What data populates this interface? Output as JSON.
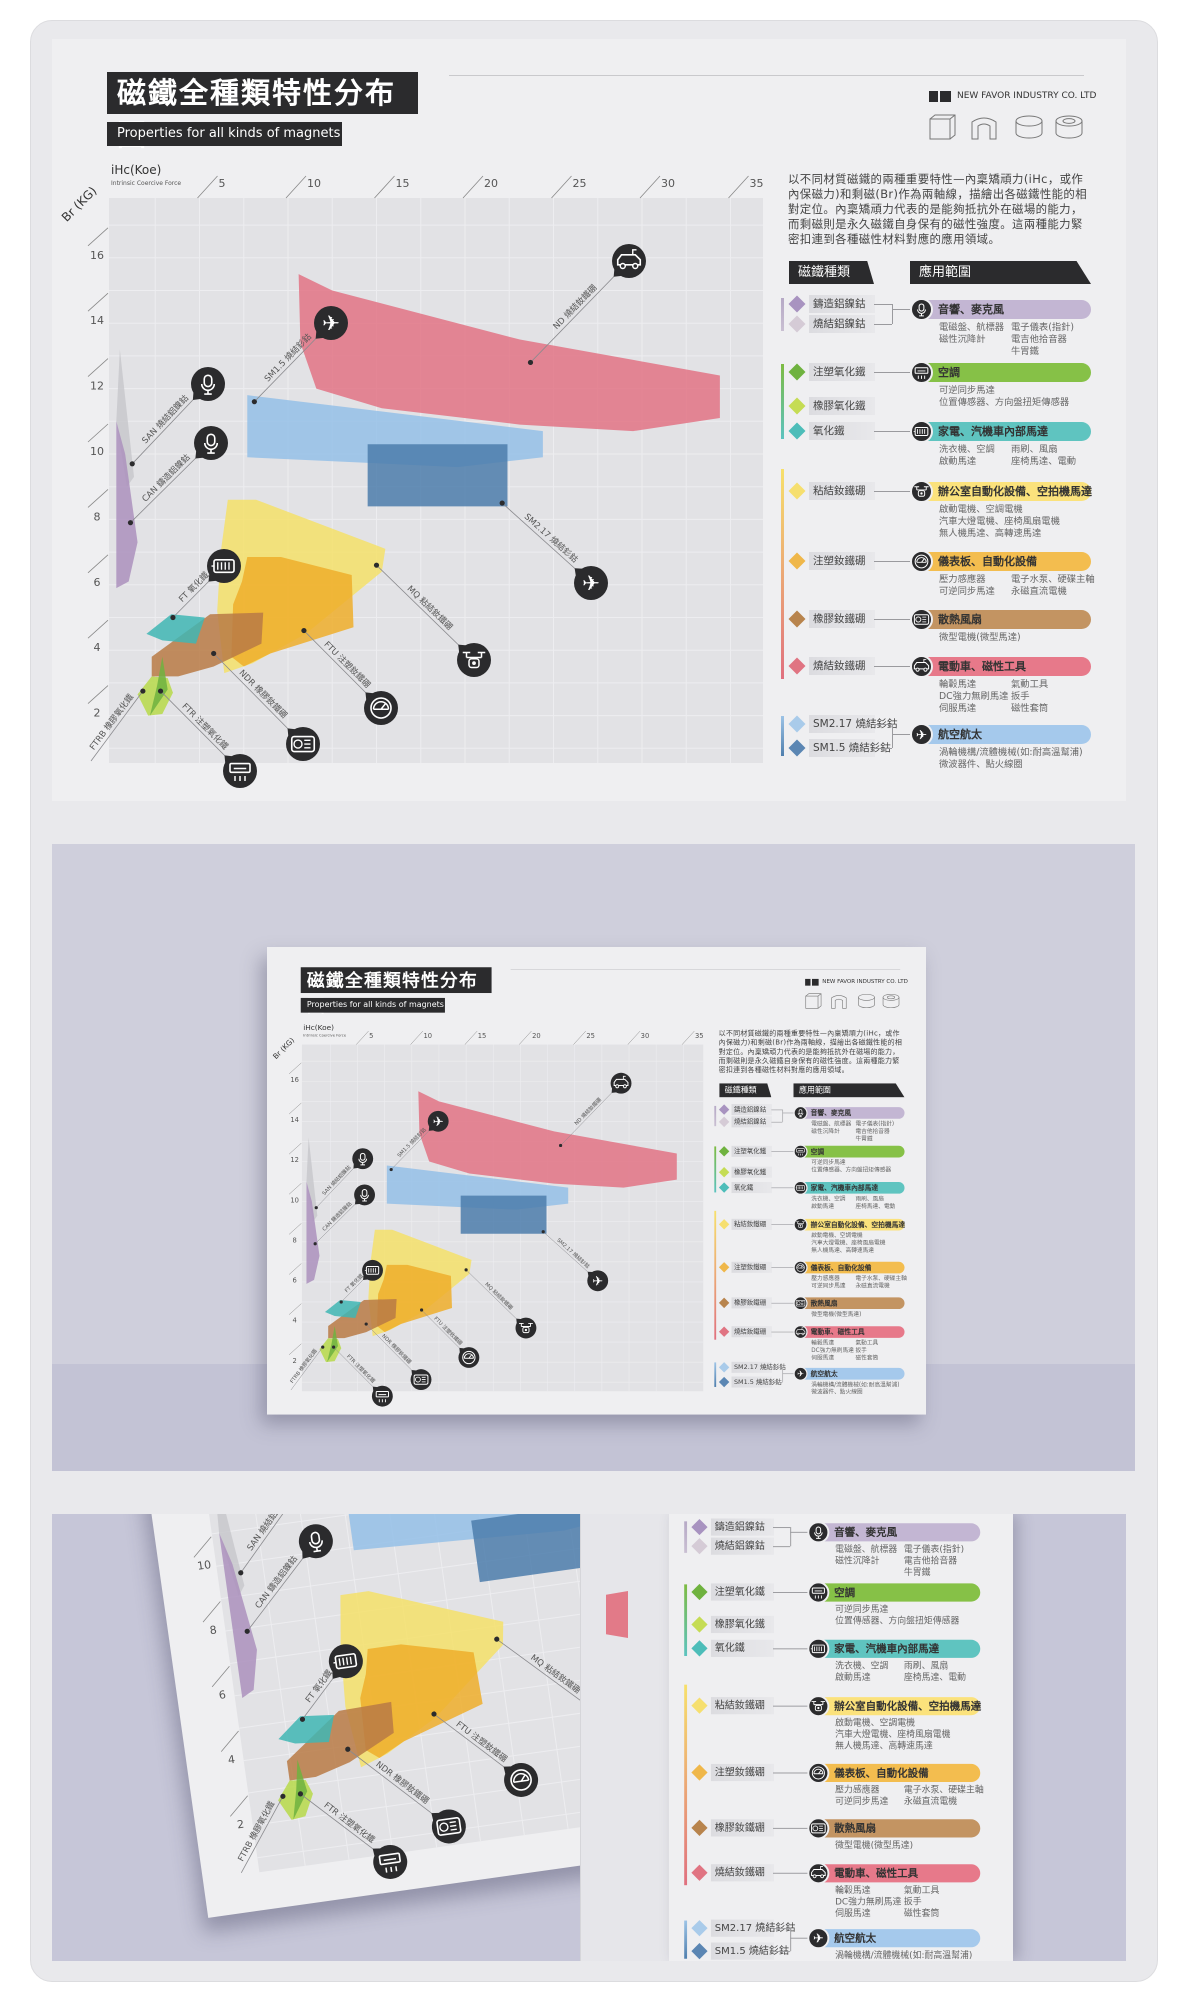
{
  "poster": {
    "title": "磁鐵全種類特性分布圖",
    "subtitle": "Properties for all kinds of magnets",
    "company": "NEW FAVOR INDUSTRY CO. LTD",
    "shape_icons": [
      "block-magnet-icon",
      "arc-magnet-icon",
      "disc-magnet-icon",
      "ring-magnet-icon"
    ],
    "description": "以不同材質磁鐵的兩種重要特性—內稟矯頑力(iHc，或作內保磁力)和剩磁(Br)作為兩軸線，描繪出各磁鐵性能的相對定位。內稟矯頑力代表的是能夠抵抗外在磁場的能力，而剩磁則是永久磁鐵自身保有的磁性強度。這兩種能力緊密扣連到各種磁性材料對應的應用領域。",
    "header_types": "磁鐵種類",
    "header_apps": "應用範圍",
    "materials": [
      {
        "name": "鑄造鋁鎳鈷",
        "color": "#a893c0"
      },
      {
        "name": "燒結鋁鎳鈷",
        "color": "#d5cbd6"
      },
      {
        "name": "注塑氧化鐵",
        "color": "#6fb23f"
      },
      {
        "name": "橡膠氧化鐵",
        "color": "#c5dc54"
      },
      {
        "name": "氧化鐵",
        "color": "#4dbdb9"
      },
      {
        "name": "粘結釹鐵硼",
        "color": "#f6df6f"
      },
      {
        "name": "注塑釹鐵硼",
        "color": "#efb74a"
      },
      {
        "name": "橡膠釹鐵硼",
        "color": "#b8844d"
      },
      {
        "name": "燒結釹鐵硼",
        "color": "#e07482"
      },
      {
        "name": "SM2.17 燒結釤鈷",
        "color": "#a9cbea"
      },
      {
        "name": "SM1.5 燒結釤鈷",
        "color": "#5b86b3"
      }
    ],
    "applications": [
      {
        "title": "音響、麥克風",
        "icon": "microphone-icon",
        "color": "#c3b6d3",
        "lines": [
          [
            "電磁盤、航標器",
            "電子儀表(指針)"
          ],
          [
            "磁性沉降計",
            "電吉他拾音器"
          ],
          [
            "",
            "牛胃鐵"
          ]
        ]
      },
      {
        "title": "空調",
        "icon": "air-conditioner-icon",
        "color": "#86c147",
        "lines": [
          [
            "可逆同步馬達",
            ""
          ],
          [
            "位置傳感器、方向盤扭矩傳感器",
            ""
          ]
        ]
      },
      {
        "title": "家電、汽機車內部馬達",
        "icon": "motor-icon",
        "color": "#5fc4c0",
        "lines": [
          [
            "洗衣機、空調",
            "雨刷、風扇"
          ],
          [
            "啟動馬達",
            "座椅馬達、電動"
          ]
        ]
      },
      {
        "title": "辦公室自動化設備、空拍機馬達",
        "icon": "drone-icon",
        "color": "#fbe27c",
        "lines": [
          [
            "啟動電機、空調電機",
            ""
          ],
          [
            "汽車大燈電機、座椅風扇電機",
            ""
          ],
          [
            "無人機馬達、高轉速馬達",
            ""
          ]
        ]
      },
      {
        "title": "儀表板、自動化設備",
        "icon": "gauge-icon",
        "color": "#f3bd4f",
        "lines": [
          [
            "壓力感應器",
            "電子水泵、硬碟主軸"
          ],
          [
            "可逆同步馬達",
            "永磁直流電機"
          ]
        ]
      },
      {
        "title": "散熱風扇",
        "icon": "fan-panel-icon",
        "color": "#c39462",
        "lines": [
          [
            "微型電機(微型馬達)",
            ""
          ]
        ]
      },
      {
        "title": "電動車、磁性工具",
        "icon": "car-icon",
        "color": "#e7798a",
        "lines": [
          [
            "輪轂馬達",
            "氣動工具"
          ],
          [
            "DC強力無刷馬達",
            "扳手"
          ],
          [
            "伺服馬達",
            "磁性套筒"
          ]
        ]
      },
      {
        "title": "航空航太",
        "icon": "airplane-icon",
        "color": "#a5c9ec",
        "lines": [
          [
            "渦輪機構/流體機械(如:耐高溫幫浦)",
            ""
          ],
          [
            "微波器件、點火線圈",
            ""
          ]
        ]
      }
    ],
    "group_colors": [
      [
        "#b6a9c6",
        "#c9bfd2"
      ],
      [
        "#7dbb42",
        "#5cc3c0"
      ],
      [
        "#f7e06b",
        "#e0707f"
      ],
      [
        "#9cc3e6",
        "#4f7fae"
      ]
    ]
  },
  "chart_data": {
    "type": "area",
    "xlabel": "iHc(Koe)",
    "xlabel_sub": "Intrinsic Coercive Force",
    "ylabel": "Br (KG)",
    "xlim": [
      0,
      37
    ],
    "ylim": [
      0,
      17.7
    ],
    "xticks": [
      5,
      10,
      15,
      20,
      25,
      30,
      35
    ],
    "yticks": [
      2,
      4,
      6,
      8,
      10,
      12,
      14,
      16
    ],
    "grid": true,
    "regions": [
      {
        "label": "SAN 燒結鋁鎳鈷",
        "color": "#c8c8cc",
        "icon": "microphone-icon",
        "point": [
          1.2,
          9.7
        ],
        "polygon": [
          [
            0.5,
            13.2
          ],
          [
            1.3,
            9.3
          ],
          [
            0.9,
            9.0
          ],
          [
            0.3,
            11.0
          ]
        ]
      },
      {
        "label": "CAN 鑄造鋁鎳鈷",
        "color": "#ab90bd",
        "icon": "microphone-icon",
        "point": [
          1.1,
          7.9
        ],
        "polygon": [
          [
            0.3,
            11.0
          ],
          [
            0.8,
            10.0
          ],
          [
            1.5,
            7.3
          ],
          [
            1.0,
            6.1
          ],
          [
            0.3,
            5.9
          ]
        ]
      },
      {
        "label": "SM1.5 燒結釤鈷",
        "color": "#94bfe8",
        "icon": "airplane-icon",
        "point": [
          8.1,
          11.6
        ],
        "polygon": [
          [
            7.7,
            11.8
          ],
          [
            24.4,
            10.7
          ],
          [
            24.4,
            9.9
          ],
          [
            19.6,
            9.6
          ],
          [
            7.7,
            9.9
          ]
        ]
      },
      {
        "label": "ND 燒結釹鐵硼",
        "color": "#e27385",
        "icon": "car-icon",
        "point": [
          23.7,
          12.8
        ],
        "polygon": [
          [
            10.6,
            15.5
          ],
          [
            12.5,
            15.0
          ],
          [
            23.1,
            13.5
          ],
          [
            34.4,
            12.4
          ],
          [
            34.4,
            11.1
          ],
          [
            29.5,
            10.7
          ],
          [
            23.1,
            10.9
          ],
          [
            15.3,
            11.4
          ],
          [
            11.6,
            12.0
          ],
          [
            10.7,
            13.4
          ]
        ]
      },
      {
        "label": "SM2.17 燒結釤鈷",
        "color": "#4c7cab",
        "icon": "airplane-icon",
        "point": [
          22.1,
          8.5
        ],
        "polygon": [
          [
            14.5,
            10.3
          ],
          [
            22.4,
            10.3
          ],
          [
            22.4,
            8.4
          ],
          [
            14.5,
            8.4
          ]
        ]
      },
      {
        "label": "MQ 粘結釹鐵硼",
        "color": "#f4e06a",
        "icon": "drone-icon",
        "point": [
          15.0,
          6.6
        ],
        "polygon": [
          [
            6.6,
            8.6
          ],
          [
            8.2,
            8.6
          ],
          [
            15.5,
            7.1
          ],
          [
            15.3,
            6.4
          ],
          [
            11.0,
            4.5
          ],
          [
            8.0,
            3.6
          ],
          [
            6.4,
            3.3
          ],
          [
            6.0,
            5.2
          ],
          [
            6.2,
            7.0
          ]
        ]
      },
      {
        "label": "FTU 注塑釹鐵硼",
        "color": "#efae2c",
        "icon": "gauge-icon",
        "point": [
          10.9,
          4.6
        ],
        "polygon": [
          [
            7.7,
            6.85
          ],
          [
            9.6,
            6.85
          ],
          [
            13.6,
            6.3
          ],
          [
            13.7,
            4.7
          ],
          [
            9.0,
            3.9
          ],
          [
            7.5,
            3.5
          ],
          [
            6.8,
            3.8
          ],
          [
            6.9,
            5.4
          ],
          [
            7.4,
            6.1
          ]
        ]
      },
      {
        "label": "NDR 橡膠釹鐵硼",
        "color": "#b97a45",
        "icon": "fan-panel-icon",
        "point": [
          5.8,
          3.9
        ],
        "polygon": [
          [
            5.6,
            5.1
          ],
          [
            8.6,
            5.15
          ],
          [
            8.5,
            4.2
          ],
          [
            5.8,
            3.5
          ],
          [
            3.8,
            3.2
          ],
          [
            2.3,
            3.2
          ],
          [
            2.3,
            3.8
          ]
        ]
      },
      {
        "label": "FT 氧化鐵",
        "color": "#3fb6b4",
        "icon": "motor-icon",
        "point": [
          3.5,
          5.0
        ],
        "polygon": [
          [
            2.0,
            4.5
          ],
          [
            3.4,
            5.1
          ],
          [
            5.3,
            5.0
          ],
          [
            4.8,
            4.2
          ],
          [
            2.9,
            4.3
          ]
        ]
      },
      {
        "label": "FTRB 橡膠氧化鐵",
        "color": "#b7d94a",
        "icon": "",
        "point": [
          1.8,
          2.75
        ],
        "polygon": [
          [
            1.5,
            2.65
          ],
          [
            2.3,
            3.2
          ],
          [
            3.2,
            3.15
          ],
          [
            3.5,
            2.7
          ],
          [
            2.9,
            2.05
          ],
          [
            2.1,
            2.0
          ]
        ]
      },
      {
        "label": "FTR 注塑氧化鐵",
        "color": "#6fb23f",
        "icon": "air-conditioner-icon",
        "point": [
          2.8,
          2.75
        ],
        "polygon": [
          [
            2.9,
            3.8
          ],
          [
            3.2,
            2.8
          ],
          [
            2.2,
            2.0
          ],
          [
            2.6,
            2.9
          ]
        ]
      }
    ]
  }
}
